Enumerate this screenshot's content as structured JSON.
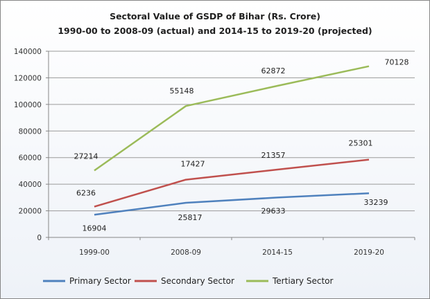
{
  "chart_data": {
    "type": "line",
    "title": "Sectoral Value of GSDP of Bihar (Rs. Crore)",
    "subtitle": "1990-00  to 2008-09 (actual) and 2014-15 to 2019-20 (projected)",
    "xlabel": "",
    "ylabel": "",
    "categories": [
      "1999-00",
      "2008-09",
      "2014-15",
      "2019-20"
    ],
    "ylim": [
      0,
      140000
    ],
    "yticks": [
      0,
      20000,
      40000,
      60000,
      80000,
      100000,
      120000,
      140000
    ],
    "grid": true,
    "legend_position": "bottom",
    "series": [
      {
        "name": "Primary Sector",
        "color": "#4f81bd",
        "values": [
          17000,
          26000,
          30000,
          33200
        ],
        "labels": [
          "16904",
          "25817",
          "29633",
          "33239"
        ]
      },
      {
        "name": "Secondary Sector",
        "color": "#c0504d",
        "values": [
          23100,
          43400,
          51000,
          58500
        ],
        "labels": [
          "6236",
          "17427",
          "21357",
          "25301"
        ]
      },
      {
        "name": "Tertiary Sector",
        "color": "#9bbb59",
        "values": [
          50300,
          98800,
          114000,
          128700
        ],
        "labels": [
          "27214",
          "55148",
          "62872",
          "70128"
        ]
      }
    ]
  }
}
